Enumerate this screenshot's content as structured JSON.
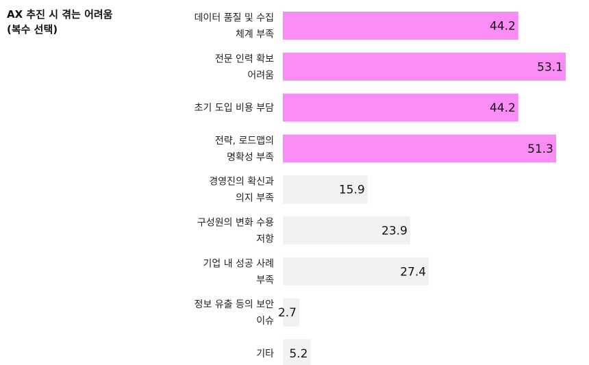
{
  "chart_data": {
    "type": "bar",
    "orientation": "horizontal",
    "title_lines": [
      "AX 추진 시 겪는 어려움",
      "(복수 선택)"
    ],
    "categories": [
      [
        "데이터 품질 및 수집",
        "체계 부족"
      ],
      [
        "전문 인력 확보",
        "어려움"
      ],
      [
        "초기 도입 비용 부담"
      ],
      [
        "전략, 로드맵의",
        "명확성 부족"
      ],
      [
        "경영진의 확신과",
        "의지 부족"
      ],
      [
        "구성원의 변화 수용",
        "저항"
      ],
      [
        "기업 내 성공 사례",
        "부족"
      ],
      [
        "정보 유출 등의 보안",
        "이슈"
      ],
      [
        "기타"
      ]
    ],
    "values": [
      44.2,
      53.1,
      44.2,
      51.3,
      15.9,
      23.9,
      27.4,
      2.7,
      5.2
    ],
    "value_labels": [
      "44.2",
      "53.1",
      "44.2",
      "51.3",
      "15.9",
      "23.9",
      "27.4",
      "2.7",
      "5.2"
    ],
    "highlight": [
      true,
      true,
      true,
      true,
      false,
      false,
      false,
      false,
      false
    ],
    "colors": {
      "highlight": "#fa8cf5",
      "normal": "#f1f1f1"
    },
    "xlim": [
      0,
      53.1
    ],
    "grid": false,
    "legend": "none"
  }
}
